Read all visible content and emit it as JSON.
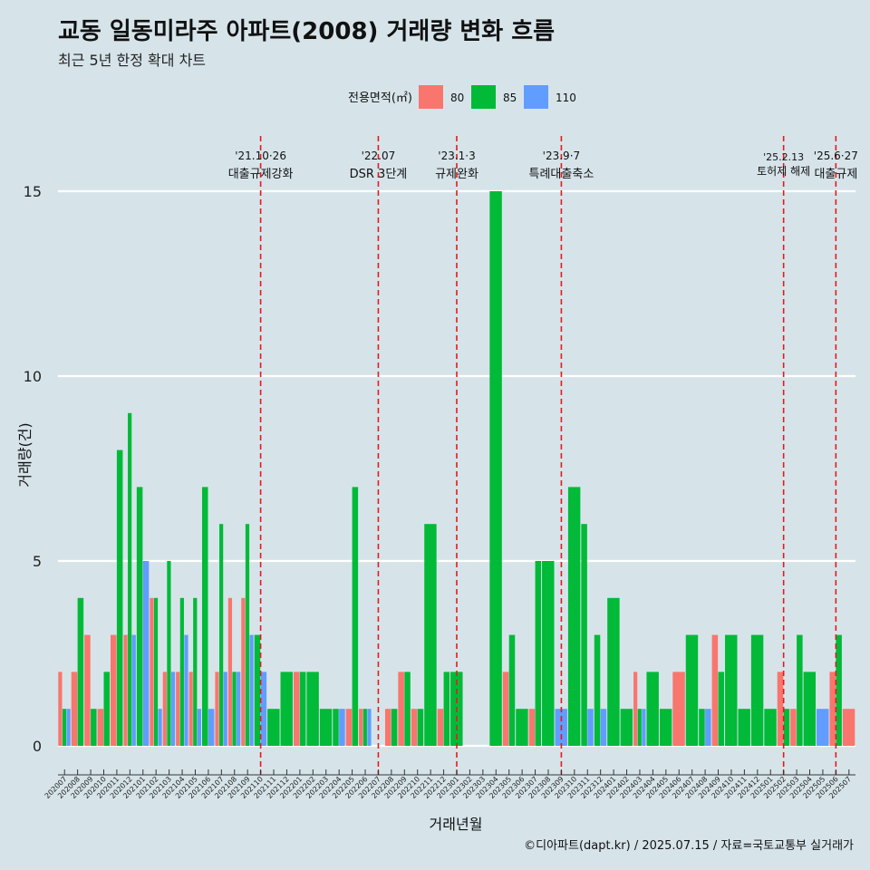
{
  "title": "교동 일동미라주 아파트(2008) 거래량 변화 흐름",
  "subtitle": "최근 5년 한정 확대 차트",
  "caption": "©디아파트(dapt.kr) / 2025.07.15 / 자료=국토교통부 실거래가",
  "colors": {
    "80": "#f8766d",
    "85": "#00ba38",
    "110": "#619cff",
    "background": "#d6e4ea",
    "event_line": "#e41a1c",
    "grid": "#ffffff"
  },
  "chart_data": {
    "type": "bar",
    "xlabel": "거래년월",
    "ylabel": "거래량(건)",
    "ylim": [
      -0.7,
      16.5
    ],
    "yticks": [
      0,
      5,
      10,
      15
    ],
    "grid": true,
    "legend": {
      "title": "전용면적(㎡)",
      "position": "top",
      "entries": [
        "80",
        "85",
        "110"
      ]
    },
    "categories": [
      "202007",
      "202008",
      "202009",
      "202010",
      "202011",
      "202012",
      "202101",
      "202102",
      "202103",
      "202104",
      "202105",
      "202106",
      "202107",
      "202108",
      "202109",
      "202110",
      "202111",
      "202112",
      "202201",
      "202202",
      "202203",
      "202204",
      "202205",
      "202206",
      "202207",
      "202208",
      "202209",
      "202210",
      "202211",
      "202212",
      "202301",
      "202302",
      "202303",
      "202304",
      "202305",
      "202306",
      "202307",
      "202308",
      "202309",
      "202310",
      "202311",
      "202312",
      "202401",
      "202402",
      "202403",
      "202404",
      "202405",
      "202406",
      "202407",
      "202408",
      "202409",
      "202410",
      "202411",
      "202412",
      "202501",
      "202502",
      "202503",
      "202504",
      "202505",
      "202506",
      "202507"
    ],
    "series": [
      {
        "name": "80",
        "values": [
          2,
          2,
          3,
          1,
          3,
          3,
          0,
          4,
          2,
          2,
          2,
          0,
          2,
          4,
          4,
          0,
          0,
          0,
          2,
          0,
          0,
          0,
          1,
          1,
          0,
          1,
          2,
          1,
          0,
          1,
          0,
          0,
          0,
          0,
          2,
          0,
          1,
          0,
          0,
          0,
          0,
          0,
          0,
          0,
          2,
          0,
          0,
          2,
          0,
          0,
          3,
          0,
          0,
          0,
          0,
          2,
          1,
          0,
          0,
          2,
          1
        ]
      },
      {
        "name": "85",
        "values": [
          1,
          4,
          1,
          2,
          8,
          9,
          7,
          4,
          5,
          4,
          4,
          7,
          6,
          2,
          6,
          3,
          1,
          2,
          2,
          2,
          1,
          1,
          7,
          1,
          0,
          1,
          2,
          1,
          6,
          2,
          2,
          0,
          0,
          15,
          3,
          1,
          5,
          5,
          0,
          7,
          6,
          3,
          4,
          1,
          1,
          2,
          1,
          0,
          3,
          1,
          2,
          3,
          1,
          3,
          1,
          1,
          3,
          2,
          0,
          3,
          0
        ]
      },
      {
        "name": "110",
        "values": [
          1,
          0,
          0,
          0,
          0,
          3,
          5,
          1,
          2,
          3,
          1,
          1,
          2,
          2,
          3,
          2,
          0,
          0,
          0,
          0,
          0,
          1,
          0,
          1,
          0,
          0,
          0,
          0,
          0,
          0,
          0,
          0,
          0,
          0,
          0,
          0,
          0,
          0,
          1,
          0,
          1,
          1,
          0,
          0,
          1,
          0,
          0,
          0,
          0,
          1,
          0,
          0,
          0,
          0,
          0,
          0,
          0,
          0,
          1,
          0,
          0
        ]
      }
    ],
    "events": [
      {
        "date": "202110",
        "label1": "'21.10·26",
        "label2": "대출규제강화"
      },
      {
        "date": "202207",
        "label1": "'22.07",
        "label2": "DSR 3단계"
      },
      {
        "date": "202301",
        "label1": "'23.1·3",
        "label2": "규제완화"
      },
      {
        "date": "202309",
        "label1": "'23.9·7",
        "label2": "특례대출축소"
      },
      {
        "date": "202502",
        "label1": "'25.2.13",
        "label2": "토허제 해제"
      },
      {
        "date": "202506",
        "label1": "'25.6·27",
        "label2": "대출규제"
      }
    ]
  }
}
